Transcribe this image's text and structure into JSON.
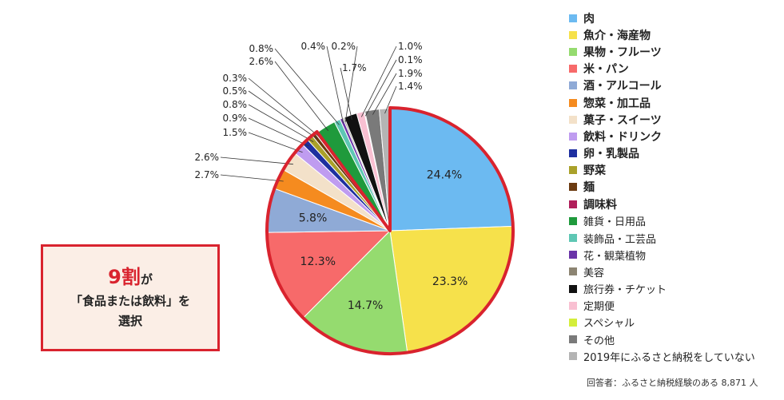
{
  "chart_data": {
    "type": "pie",
    "title": "",
    "start_angle_deg": 0,
    "direction": "clockwise",
    "slices": [
      {
        "name": "肉",
        "value": 24.4,
        "label": "24.4%",
        "color": "#6cbaf1",
        "label_style": "inside"
      },
      {
        "name": "魚介・海産物",
        "value": 23.3,
        "label": "23.3%",
        "color": "#f6e14b",
        "label_style": "inside"
      },
      {
        "name": "果物・フルーツ",
        "value": 14.7,
        "label": "14.7%",
        "color": "#95db6f",
        "label_style": "inside"
      },
      {
        "name": "米・パン",
        "value": 12.3,
        "label": "12.3%",
        "color": "#f76a6a",
        "label_style": "inside"
      },
      {
        "name": "酒・アルコール",
        "value": 5.8,
        "label": "5.8%",
        "color": "#8faad6",
        "label_style": "inside"
      },
      {
        "name": "惣菜・加工品",
        "value": 2.7,
        "label": "2.7%",
        "color": "#f58b1f",
        "label_style": "callout"
      },
      {
        "name": "菓子・スイーツ",
        "value": 2.6,
        "label": "2.6%",
        "color": "#f3e1c9",
        "label_style": "callout"
      },
      {
        "name": "飲料・ドリンク",
        "value": 1.5,
        "label": "1.5%",
        "color": "#bf9cf0",
        "label_style": "callout"
      },
      {
        "name": "卵・乳製品",
        "value": 0.9,
        "label": "0.9%",
        "color": "#1e2fa0",
        "label_style": "callout"
      },
      {
        "name": "野菜",
        "value": 0.8,
        "label": "0.8%",
        "color": "#aaa12a",
        "label_style": "callout"
      },
      {
        "name": "麺",
        "value": 0.5,
        "label": "0.5%",
        "color": "#6b3a10",
        "label_style": "callout"
      },
      {
        "name": "調味料",
        "value": 0.3,
        "label": "0.3%",
        "color": "#b01e5a",
        "label_style": "callout"
      },
      {
        "name": "雑貨・日用品",
        "value": 2.6,
        "label": "2.6%",
        "color": "#1f9a3c",
        "label_style": "callout"
      },
      {
        "name": "装飾品・工芸品",
        "value": 0.8,
        "label": "0.8%",
        "color": "#5ec7b4",
        "label_style": "callout"
      },
      {
        "name": "花・観葉植物",
        "value": 0.4,
        "label": "0.4%",
        "color": "#6a34a8",
        "label_style": "callout"
      },
      {
        "name": "美容",
        "value": 0.2,
        "label": "0.2%",
        "color": "#8c8472",
        "label_style": "callout"
      },
      {
        "name": "旅行券・チケット",
        "value": 1.7,
        "label": "1.7%",
        "color": "#111111",
        "label_style": "callout"
      },
      {
        "name": "定期便",
        "value": 1.0,
        "label": "1.0%",
        "color": "#f9c0d2",
        "label_style": "callout"
      },
      {
        "name": "スペシャル",
        "value": 0.1,
        "label": "0.1%",
        "color": "#d4ee3b",
        "label_style": "callout"
      },
      {
        "name": "その他",
        "value": 1.9,
        "label": "1.9%",
        "color": "#7a7a7a",
        "label_style": "callout"
      },
      {
        "name": "2019年にふるさと納税をしていない",
        "value": 1.4,
        "label": "1.4%",
        "color": "#b4b4b4",
        "label_style": "callout"
      }
    ],
    "highlight": {
      "from_slice": 0,
      "to_slice": 11,
      "color": "#d9232e"
    },
    "legend_placement": "right"
  },
  "legend_items": [
    {
      "label": "肉",
      "color": "#6cbaf1",
      "bold": true
    },
    {
      "label": "魚介・海産物",
      "color": "#f6e14b",
      "bold": true
    },
    {
      "label": "果物・フルーツ",
      "color": "#95db6f",
      "bold": true
    },
    {
      "label": "米・パン",
      "color": "#f76a6a",
      "bold": true
    },
    {
      "label": "酒・アルコール",
      "color": "#8faad6",
      "bold": true
    },
    {
      "label": "惣菜・加工品",
      "color": "#f58b1f",
      "bold": true
    },
    {
      "label": "菓子・スイーツ",
      "color": "#f3e1c9",
      "bold": true
    },
    {
      "label": "飲料・ドリンク",
      "color": "#bf9cf0",
      "bold": true
    },
    {
      "label": "卵・乳製品",
      "color": "#1e2fa0",
      "bold": true
    },
    {
      "label": "野菜",
      "color": "#aaa12a",
      "bold": true
    },
    {
      "label": "麺",
      "color": "#6b3a10",
      "bold": true
    },
    {
      "label": "調味料",
      "color": "#b01e5a",
      "bold": true
    },
    {
      "label": "雑貨・日用品",
      "color": "#1f9a3c",
      "bold": false
    },
    {
      "label": "装飾品・工芸品",
      "color": "#5ec7b4",
      "bold": false
    },
    {
      "label": "花・観葉植物",
      "color": "#6a34a8",
      "bold": false
    },
    {
      "label": "美容",
      "color": "#8c8472",
      "bold": false
    },
    {
      "label": "旅行券・チケット",
      "color": "#111111",
      "bold": false
    },
    {
      "label": "定期便",
      "color": "#f9c0d2",
      "bold": false
    },
    {
      "label": "スペシャル",
      "color": "#d4ee3b",
      "bold": false
    },
    {
      "label": "その他",
      "color": "#7a7a7a",
      "bold": false
    },
    {
      "label": "2019年にふるさと納税をしていない",
      "color": "#b4b4b4",
      "bold": false
    }
  ],
  "callout_box": {
    "line1_big": "9割",
    "line1_small": "が",
    "line2": "「食品または飲料」を",
    "line3": "選択"
  },
  "footnote": "回答者：ふるさと納税経験のある 8,871 人",
  "colors": {
    "accent_red": "#d9232e",
    "callout_bg": "#fbeee6"
  }
}
